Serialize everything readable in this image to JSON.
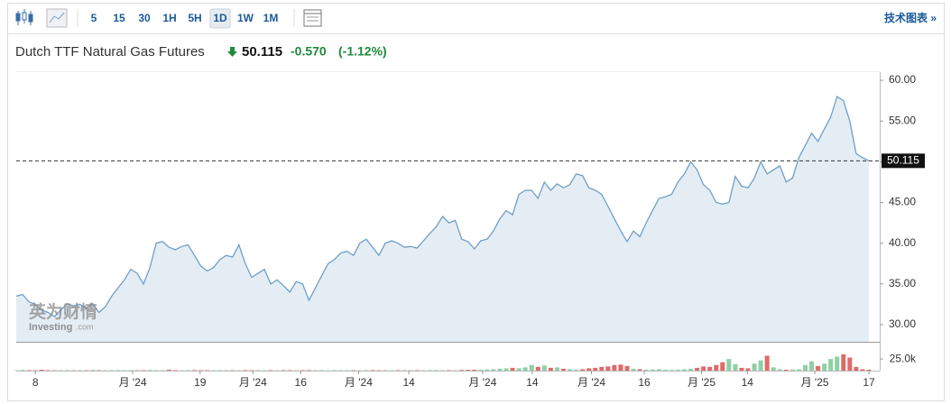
{
  "toolbar": {
    "intervals": [
      "5",
      "15",
      "30",
      "1H",
      "5H",
      "1D",
      "1W",
      "1M"
    ],
    "active": "1D",
    "right_link": "技术图表 »"
  },
  "header": {
    "title": "Dutch TTF Natural Gas Futures",
    "change": "-0.570",
    "change_pct": "(-1.12%)"
  },
  "watermark": {
    "cn": "英为财情",
    "en": "Investing",
    "domain": ".com"
  },
  "chart_data": {
    "type": "area",
    "color": "#6f9fc8",
    "fill": "#e4edf4",
    "last_value": 50.115,
    "xlim": [
      0,
      134
    ],
    "xticks": [
      {
        "value": 3,
        "label": "8"
      },
      {
        "value": 18.3,
        "label": "月 '24"
      },
      {
        "value": 28.9,
        "label": "19"
      },
      {
        "value": 37.2,
        "label": "月 '24"
      },
      {
        "value": 44.7,
        "label": "16"
      },
      {
        "value": 53.8,
        "label": "月 '24"
      },
      {
        "value": 61.7,
        "label": "14"
      },
      {
        "value": 73.3,
        "label": "月 '24"
      },
      {
        "value": 81.1,
        "label": "14"
      },
      {
        "value": 90.4,
        "label": "月 '24"
      },
      {
        "value": 98.7,
        "label": "16"
      },
      {
        "value": 107.7,
        "label": "月 '25"
      },
      {
        "value": 114.9,
        "label": "14"
      },
      {
        "value": 125.5,
        "label": "月 '25"
      },
      {
        "value": 134,
        "label": "17"
      }
    ],
    "ylim": [
      27.9,
      61
    ],
    "yticks": [
      {
        "value": 30,
        "label": "30.00"
      },
      {
        "value": 35,
        "label": "35.00"
      },
      {
        "value": 40,
        "label": "40.00"
      },
      {
        "value": 45,
        "label": "45.00"
      },
      {
        "value": 50,
        "label": "50.00"
      },
      {
        "value": 55,
        "label": "55.00"
      },
      {
        "value": 60,
        "label": "60.00"
      }
    ],
    "values": [
      33.5,
      33.7,
      32.8,
      32.5,
      31.8,
      31.5,
      31.0,
      31.8,
      32.6,
      32.3,
      32.5,
      32.0,
      32.6,
      31.5,
      32.2,
      33.5,
      34.5,
      35.5,
      36.8,
      36.3,
      35.0,
      37.0,
      40.0,
      40.2,
      39.5,
      39.2,
      39.6,
      39.8,
      38.5,
      37.2,
      36.6,
      37.0,
      38.0,
      38.5,
      38.3,
      39.8,
      37.5,
      35.8,
      36.3,
      36.8,
      35.0,
      35.5,
      34.8,
      34.0,
      35.3,
      35.0,
      33.0,
      34.5,
      36.0,
      37.5,
      38.0,
      38.8,
      39.0,
      38.5,
      40.0,
      40.5,
      39.5,
      38.5,
      40.0,
      40.3,
      40.0,
      39.5,
      39.6,
      39.4,
      40.3,
      41.2,
      42.0,
      43.3,
      42.5,
      42.8,
      40.5,
      40.2,
      39.3,
      40.3,
      40.5,
      41.5,
      43.0,
      44.0,
      43.5,
      46.0,
      46.5,
      46.5,
      45.5,
      47.5,
      46.5,
      47.3,
      46.8,
      47.2,
      48.5,
      48.3,
      46.8,
      46.5,
      46.0,
      44.5,
      43.0,
      41.5,
      40.2,
      41.5,
      40.8,
      42.5,
      44.0,
      45.5,
      45.7,
      46.0,
      47.5,
      48.5,
      50.0,
      49.0,
      47.2,
      46.5,
      45.0,
      44.8,
      45.0,
      48.2,
      47.0,
      46.8,
      48.0,
      50.0,
      48.5,
      49.0,
      49.5,
      47.5,
      48.0,
      50.5,
      52.0,
      53.5,
      52.5,
      54.0,
      55.5,
      58.0,
      57.5,
      55.0,
      51.0,
      50.5,
      50.115
    ],
    "volume": {
      "up_color": "#8fd0a3",
      "down_color": "#e06a6a",
      "ylim": [
        0,
        60000
      ],
      "yticks": [
        {
          "value": 25000,
          "label": "25.0k"
        }
      ],
      "values": [
        1000,
        1500,
        1000,
        800,
        2000,
        1000,
        800,
        1000,
        1200,
        800,
        1000,
        800,
        1500,
        1000,
        800,
        1000,
        1200,
        900,
        1000,
        800,
        1000,
        1500,
        1000,
        800,
        2000,
        1000,
        800,
        1000,
        1200,
        800,
        1000,
        800,
        1000,
        1000,
        800,
        1000,
        1200,
        900,
        1000,
        800,
        1000,
        800,
        1000,
        1000,
        800,
        1000,
        1200,
        900,
        1000,
        800,
        1000,
        800,
        1000,
        1000,
        800,
        1000,
        1200,
        900,
        1000,
        800,
        1000,
        800,
        1000,
        1000,
        800,
        1000,
        1200,
        900,
        1000,
        800,
        1500,
        1800,
        2000,
        2000,
        2500,
        3000,
        4000,
        5000,
        6000,
        5000,
        7000,
        12000,
        8000,
        11000,
        6000,
        7000,
        4000,
        3000,
        2000,
        3000,
        5000,
        6000,
        8000,
        9000,
        12000,
        13000,
        10000,
        4000,
        3000,
        2000,
        2500,
        3000,
        2000,
        1500,
        2000,
        3000,
        4000,
        6000,
        9000,
        8000,
        12000,
        18000,
        25000,
        14000,
        6000,
        5000,
        15000,
        22000,
        32000,
        7000,
        3000,
        2000,
        2500,
        3000,
        12000,
        20000,
        10000,
        15000,
        25000,
        30000,
        35000,
        28000,
        8000,
        3000,
        2000
      ]
    }
  }
}
